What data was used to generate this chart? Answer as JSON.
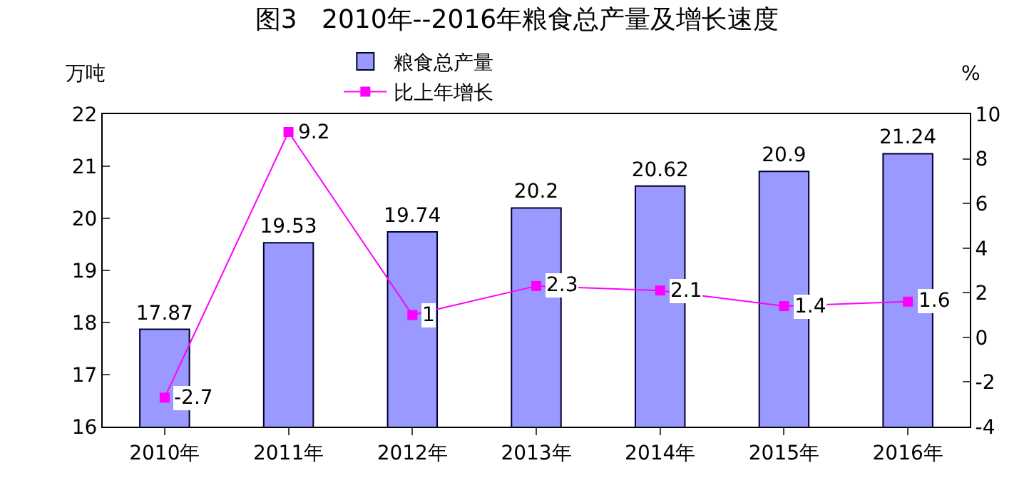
{
  "chart_data": {
    "type": "bar",
    "title": "图3   2010年--2016年粮食总产量及增长速度",
    "ylabel": "万吨",
    "y2label": "%",
    "categories": [
      "2010年",
      "2011年",
      "2012年",
      "2013年",
      "2014年",
      "2015年",
      "2016年"
    ],
    "series": [
      {
        "name": "粮食总产量",
        "color": "#9999ff",
        "values": [
          17.87,
          19.53,
          19.74,
          20.2,
          20.62,
          20.9,
          21.24
        ]
      },
      {
        "name": "比上年增长",
        "type": "line",
        "axis": "y2",
        "color": "#ff00ff",
        "marker": "square",
        "values": [
          -2.7,
          9.2,
          1,
          2.3,
          2.1,
          1.4,
          1.6
        ]
      }
    ],
    "ylim": [
      16,
      22
    ],
    "yticks": [
      16,
      17,
      18,
      19,
      20,
      21,
      22
    ],
    "y2lim": [
      -4,
      10
    ],
    "y2ticks": [
      -4,
      -2,
      0,
      2,
      4,
      6,
      8,
      10
    ],
    "data_labels": true,
    "legend": "top"
  }
}
